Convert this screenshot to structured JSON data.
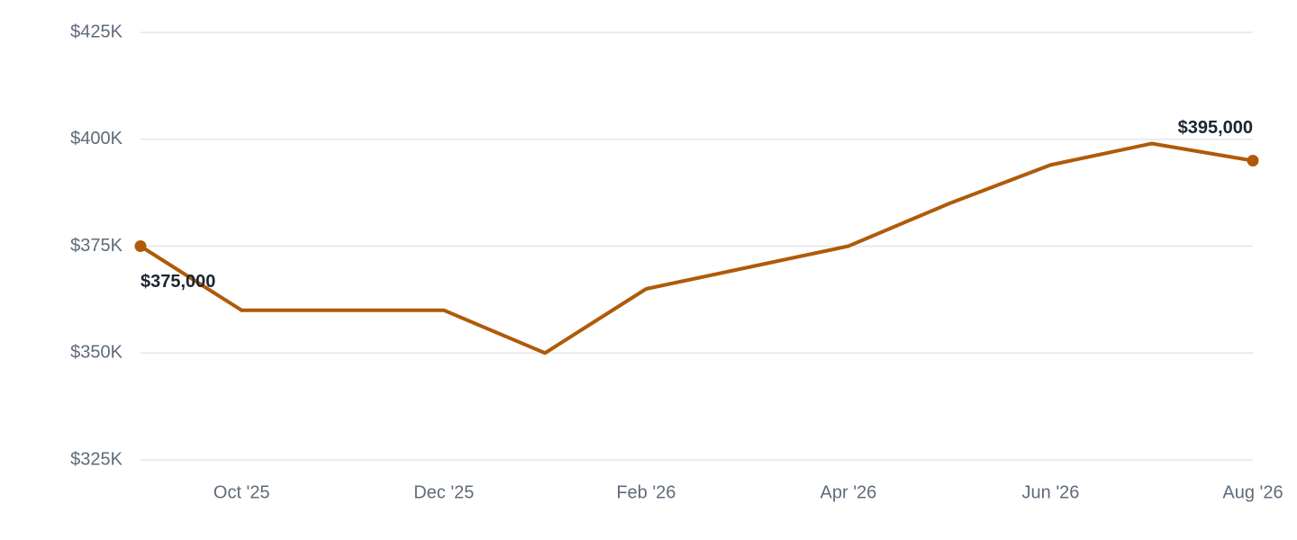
{
  "chart_data": {
    "type": "line",
    "categories": [
      null,
      "Oct '25",
      null,
      "Dec '25",
      null,
      "Feb '26",
      null,
      "Apr '26",
      null,
      "Jun '26",
      null,
      "Aug '26"
    ],
    "values": [
      375000,
      360000,
      360000,
      360000,
      350000,
      365000,
      370000,
      375000,
      385000,
      394000,
      399000,
      395000
    ],
    "value_labels": [
      "$375,000",
      null,
      null,
      null,
      null,
      null,
      null,
      null,
      null,
      null,
      null,
      "$395,000"
    ],
    "color": "#b05a08",
    "ylim": [
      325000,
      425000
    ],
    "yticks": [
      {
        "value": 325000,
        "label": "$325K"
      },
      {
        "value": 350000,
        "label": "$350K"
      },
      {
        "value": 375000,
        "label": "$375K"
      },
      {
        "value": 400000,
        "label": "$400K"
      },
      {
        "value": 425000,
        "label": "$425K"
      }
    ],
    "grid": true
  }
}
